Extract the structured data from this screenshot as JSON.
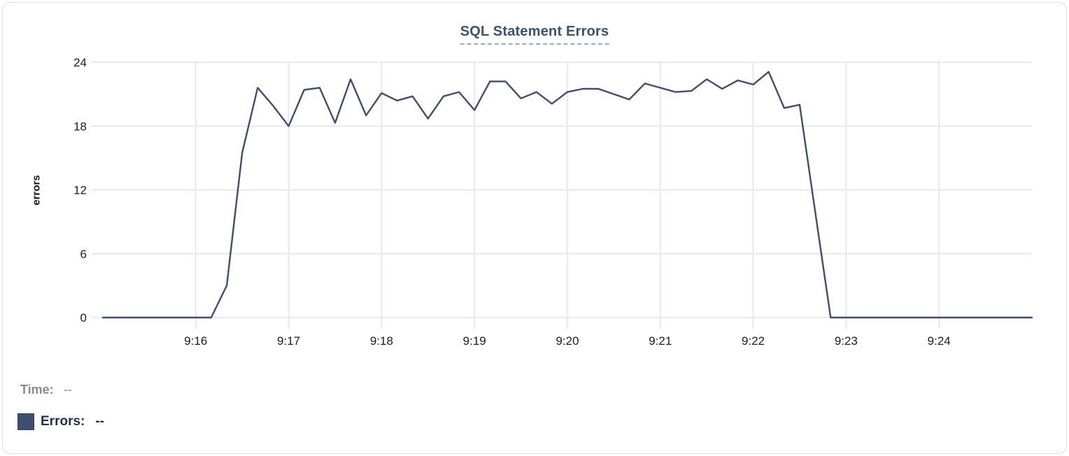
{
  "tooltip": {
    "time_label": "Time:",
    "time_value": "--",
    "errors_label": "Errors:",
    "errors_value": "--"
  },
  "colors": {
    "line": "#3f4e6e",
    "grid": "#ececee",
    "title": "#3c5170",
    "tick_label": "#1b1b1f",
    "legend_errors_text": "#20304f",
    "legend_time_text": "#8a8a90"
  },
  "chart_data": {
    "type": "line",
    "title": "SQL Statement Errors",
    "xlabel": "",
    "ylabel": "errors",
    "ylim": [
      0,
      24
    ],
    "y_ticks": [
      0,
      6,
      12,
      18,
      24
    ],
    "x_ticks": [
      "9:16",
      "9:17",
      "9:18",
      "9:19",
      "9:20",
      "9:21",
      "9:22",
      "9:23",
      "9:24"
    ],
    "x_range": [
      "9:15:00",
      "9:25:00"
    ],
    "grid": true,
    "legend_position": "bottom-left",
    "series": [
      {
        "name": "Errors",
        "color": "#3f4e6e",
        "x": [
          "9:15:00",
          "9:15:10",
          "9:15:20",
          "9:15:30",
          "9:15:40",
          "9:15:50",
          "9:16:00",
          "9:16:10",
          "9:16:20",
          "9:16:30",
          "9:16:40",
          "9:16:50",
          "9:17:00",
          "9:17:10",
          "9:17:20",
          "9:17:30",
          "9:17:40",
          "9:17:50",
          "9:18:00",
          "9:18:10",
          "9:18:20",
          "9:18:30",
          "9:18:40",
          "9:18:50",
          "9:19:00",
          "9:19:10",
          "9:19:20",
          "9:19:30",
          "9:19:40",
          "9:19:50",
          "9:20:00",
          "9:20:10",
          "9:20:20",
          "9:20:30",
          "9:20:40",
          "9:20:50",
          "9:21:00",
          "9:21:10",
          "9:21:20",
          "9:21:30",
          "9:21:40",
          "9:21:50",
          "9:22:00",
          "9:22:10",
          "9:22:20",
          "9:22:30",
          "9:22:40",
          "9:22:50",
          "9:23:00",
          "9:23:10",
          "9:23:20",
          "9:23:30",
          "9:23:40",
          "9:23:50",
          "9:24:00",
          "9:24:10",
          "9:24:20",
          "9:24:30",
          "9:24:40",
          "9:24:50",
          "9:25:00"
        ],
        "values": [
          0,
          0,
          0,
          0,
          0,
          0,
          0,
          0,
          3,
          15.5,
          21.6,
          19.9,
          18,
          21.4,
          21.6,
          18.3,
          22.4,
          19,
          21.1,
          20.4,
          20.8,
          18.7,
          20.8,
          21.2,
          19.5,
          22.2,
          22.2,
          20.6,
          21.2,
          20.1,
          21.2,
          21.5,
          21.5,
          21,
          20.5,
          22,
          21.6,
          21.2,
          21.3,
          22.4,
          21.5,
          22.3,
          21.9,
          23.1,
          19.7,
          20,
          10,
          0,
          0,
          0,
          0,
          0,
          0,
          0,
          0,
          0,
          0,
          0,
          0,
          0,
          0
        ]
      }
    ]
  }
}
